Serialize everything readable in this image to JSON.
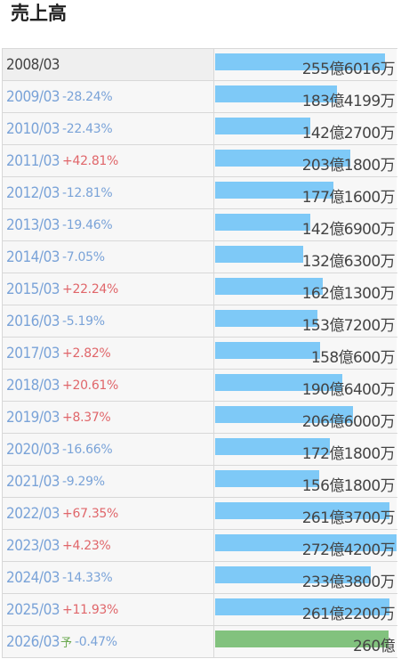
{
  "title": "売上高",
  "colors": {
    "bar_actual": "#7ec9f7",
    "bar_forecast": "#82c27e",
    "increase": "#e0666a",
    "decrease": "#7aa3d8"
  },
  "rows": [
    {
      "year": "2008/03",
      "change": "",
      "direction": "none",
      "forecast_mark": "",
      "value": "255億6016万",
      "amount_oku": 255.6,
      "forecast": false
    },
    {
      "year": "2009/03",
      "change": "-28.24%",
      "direction": "down",
      "forecast_mark": "",
      "value": "183億4199万",
      "amount_oku": 183.4,
      "forecast": false
    },
    {
      "year": "2010/03",
      "change": "-22.43%",
      "direction": "down",
      "forecast_mark": "",
      "value": "142億2700万",
      "amount_oku": 142.3,
      "forecast": false
    },
    {
      "year": "2011/03",
      "change": "+42.81%",
      "direction": "up",
      "forecast_mark": "",
      "value": "203億1800万",
      "amount_oku": 203.2,
      "forecast": false
    },
    {
      "year": "2012/03",
      "change": "-12.81%",
      "direction": "down",
      "forecast_mark": "",
      "value": "177億1600万",
      "amount_oku": 177.2,
      "forecast": false
    },
    {
      "year": "2013/03",
      "change": "-19.46%",
      "direction": "down",
      "forecast_mark": "",
      "value": "142億6900万",
      "amount_oku": 142.7,
      "forecast": false
    },
    {
      "year": "2014/03",
      "change": "-7.05%",
      "direction": "down",
      "forecast_mark": "",
      "value": "132億6300万",
      "amount_oku": 132.6,
      "forecast": false
    },
    {
      "year": "2015/03",
      "change": "+22.24%",
      "direction": "up",
      "forecast_mark": "",
      "value": "162億1300万",
      "amount_oku": 162.1,
      "forecast": false
    },
    {
      "year": "2016/03",
      "change": "-5.19%",
      "direction": "down",
      "forecast_mark": "",
      "value": "153億7200万",
      "amount_oku": 153.7,
      "forecast": false
    },
    {
      "year": "2017/03",
      "change": "+2.82%",
      "direction": "up",
      "forecast_mark": "",
      "value": "158億600万",
      "amount_oku": 158.1,
      "forecast": false
    },
    {
      "year": "2018/03",
      "change": "+20.61%",
      "direction": "up",
      "forecast_mark": "",
      "value": "190億6400万",
      "amount_oku": 190.6,
      "forecast": false
    },
    {
      "year": "2019/03",
      "change": "+8.37%",
      "direction": "up",
      "forecast_mark": "",
      "value": "206億6000万",
      "amount_oku": 206.6,
      "forecast": false
    },
    {
      "year": "2020/03",
      "change": "-16.66%",
      "direction": "down",
      "forecast_mark": "",
      "value": "172億1800万",
      "amount_oku": 172.2,
      "forecast": false
    },
    {
      "year": "2021/03",
      "change": "-9.29%",
      "direction": "down",
      "forecast_mark": "",
      "value": "156億1800万",
      "amount_oku": 156.2,
      "forecast": false
    },
    {
      "year": "2022/03",
      "change": "+67.35%",
      "direction": "up",
      "forecast_mark": "",
      "value": "261億3700万",
      "amount_oku": 261.4,
      "forecast": false
    },
    {
      "year": "2023/03",
      "change": "+4.23%",
      "direction": "up",
      "forecast_mark": "",
      "value": "272億4200万",
      "amount_oku": 272.4,
      "forecast": false
    },
    {
      "year": "2024/03",
      "change": "-14.33%",
      "direction": "down",
      "forecast_mark": "",
      "value": "233億3800万",
      "amount_oku": 233.4,
      "forecast": false
    },
    {
      "year": "2025/03",
      "change": "+11.93%",
      "direction": "up",
      "forecast_mark": "",
      "value": "261億2200万",
      "amount_oku": 261.2,
      "forecast": false
    },
    {
      "year": "2026/03",
      "change": "-0.47%",
      "direction": "down",
      "forecast_mark": "予",
      "value": "260億",
      "amount_oku": 260.0,
      "forecast": true
    }
  ]
}
